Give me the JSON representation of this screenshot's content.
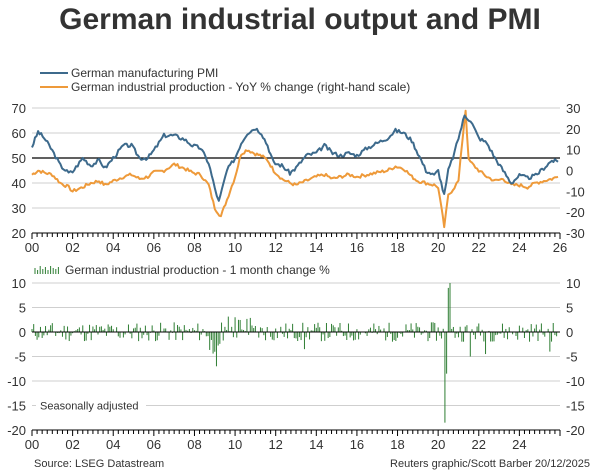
{
  "title": "German industrial output and PMI",
  "colors": {
    "pmi": "#3d6a8c",
    "ip_yoy": "#ee9a3a",
    "ip_mom": "#2e7d32",
    "grid": "#cfcfcf",
    "ref": "#000000"
  },
  "source": "Source: LSEG Datastream",
  "credit": "Reuters graphic/Scott Barber 20/12/2025",
  "chart_data": [
    {
      "type": "line",
      "title": "German manufacturing PMI vs industrial production YoY",
      "legend": [
        "German manufacturing PMI",
        "German industrial production - YoY % change (right-hand scale)"
      ],
      "legend_position": "top-left",
      "x_ticks": [
        "00",
        "02",
        "04",
        "06",
        "08",
        "10",
        "12",
        "14",
        "16",
        "18",
        "20",
        "22",
        "24",
        "26"
      ],
      "xlim": [
        2000,
        2026
      ],
      "y_left": {
        "ticks": [
          70,
          60,
          50,
          40,
          30,
          20
        ],
        "lim": [
          20,
          70
        ]
      },
      "y_right": {
        "ticks": [
          30,
          20,
          10,
          0,
          -10,
          -20,
          -30
        ],
        "lim": [
          -30,
          30
        ]
      },
      "reference_line": 50,
      "grid": true,
      "series": [
        {
          "name": "German manufacturing PMI",
          "axis": "left",
          "x": [
            2000,
            2000.3,
            2000.6,
            2001,
            2001.4,
            2001.8,
            2002,
            2002.5,
            2002.9,
            2003.3,
            2003.6,
            2004,
            2004.5,
            2004.9,
            2005.3,
            2005.7,
            2006,
            2006.5,
            2007,
            2007.5,
            2007.9,
            2008.3,
            2008.7,
            2009.0,
            2009.2,
            2009.6,
            2010,
            2010.3,
            2010.6,
            2011.0,
            2011.3,
            2011.6,
            2011.9,
            2012.3,
            2012.7,
            2013,
            2013.5,
            2014,
            2014.4,
            2014.8,
            2015.2,
            2015.6,
            2016,
            2016.5,
            2017,
            2017.5,
            2017.9,
            2018.3,
            2018.7,
            2019,
            2019.4,
            2019.8,
            2020.0,
            2020.3,
            2020.5,
            2020.8,
            2021,
            2021.3,
            2021.6,
            2022,
            2022.4,
            2022.8,
            2023.2,
            2023.6,
            2024,
            2024.4,
            2024.8,
            2025.2,
            2025.6,
            2025.9
          ],
          "values": [
            54.5,
            60.5,
            58,
            53,
            47,
            44,
            44.5,
            50,
            47,
            49,
            46,
            50,
            55,
            55,
            50,
            50,
            53,
            59,
            59,
            57.5,
            55,
            54,
            48,
            38,
            32.5,
            45,
            50,
            56,
            60,
            62,
            60,
            55,
            48,
            47,
            44,
            46,
            51,
            52,
            55,
            52,
            51,
            52,
            51,
            54,
            56,
            58,
            61,
            60,
            57,
            52,
            45,
            43,
            45,
            35,
            45,
            52,
            58,
            67,
            65,
            58,
            56,
            50,
            45,
            40,
            43,
            42,
            43,
            46,
            49,
            48.5
          ]
        },
        {
          "name": "German industrial production - YoY % change",
          "axis": "right",
          "x": [
            2000,
            2000.3,
            2000.6,
            2001,
            2001.4,
            2001.8,
            2002,
            2002.5,
            2002.9,
            2003.3,
            2003.6,
            2004,
            2004.5,
            2004.9,
            2005.3,
            2005.7,
            2006,
            2006.5,
            2007,
            2007.5,
            2007.9,
            2008.3,
            2008.7,
            2009.0,
            2009.3,
            2009.6,
            2010,
            2010.3,
            2010.6,
            2011.0,
            2011.3,
            2011.6,
            2011.9,
            2012.3,
            2012.7,
            2013,
            2013.5,
            2014,
            2014.4,
            2014.8,
            2015.2,
            2015.6,
            2016,
            2016.5,
            2017,
            2017.5,
            2017.9,
            2018.3,
            2018.7,
            2019,
            2019.4,
            2019.8,
            2020.0,
            2020.3,
            2020.5,
            2020.8,
            2021,
            2021.2,
            2021.35,
            2021.5,
            2022,
            2022.4,
            2022.8,
            2023.2,
            2023.6,
            2024,
            2024.4,
            2024.8,
            2025.2,
            2025.6,
            2025.9
          ],
          "values": [
            -2,
            0,
            -1,
            -2,
            -6,
            -8,
            -10,
            -8,
            -6,
            -5,
            -7,
            -5,
            -3,
            -2,
            -4,
            -3,
            -1,
            0,
            3,
            1,
            -1,
            -2,
            -7,
            -18,
            -22,
            -14,
            -3,
            8,
            10,
            8,
            7,
            5,
            0,
            -4,
            -6,
            -7,
            -5,
            -3,
            -2,
            -4,
            -3,
            -2,
            -3,
            -2,
            -1,
            0,
            2,
            1,
            -3,
            -5,
            -6,
            -7,
            -8,
            -27,
            -12,
            -8,
            -5,
            15,
            29,
            5,
            0,
            -3,
            -5,
            -4,
            -7,
            -7,
            -8,
            -6,
            -5,
            -4,
            -3
          ]
        }
      ]
    },
    {
      "type": "bar",
      "title": "German industrial production - 1 month change %",
      "legend": [
        "German industrial production - 1 month change %"
      ],
      "legend_position": "top-left",
      "x_ticks": [
        "00",
        "02",
        "04",
        "06",
        "08",
        "10",
        "12",
        "14",
        "16",
        "18",
        "20",
        "22",
        "24"
      ],
      "xlim": [
        2000,
        2026
      ],
      "ylim": [
        -20,
        10
      ],
      "y_ticks": [
        10,
        5,
        0,
        -5,
        -10,
        -15,
        -20
      ],
      "grid": true,
      "annotation": "Seasonally adjusted",
      "highlights": [
        {
          "x": 2009.1,
          "value": -7
        },
        {
          "x": 2020.3,
          "value": -18.5
        },
        {
          "x": 2020.4,
          "value": -8.5
        },
        {
          "x": 2020.5,
          "value": 9
        },
        {
          "x": 2020.6,
          "value": 10
        },
        {
          "x": 2013.4,
          "value": -3.5
        },
        {
          "x": 2021.6,
          "value": -5
        },
        {
          "x": 2022.3,
          "value": -4.5
        },
        {
          "x": 2025.5,
          "value": -4
        }
      ]
    }
  ]
}
